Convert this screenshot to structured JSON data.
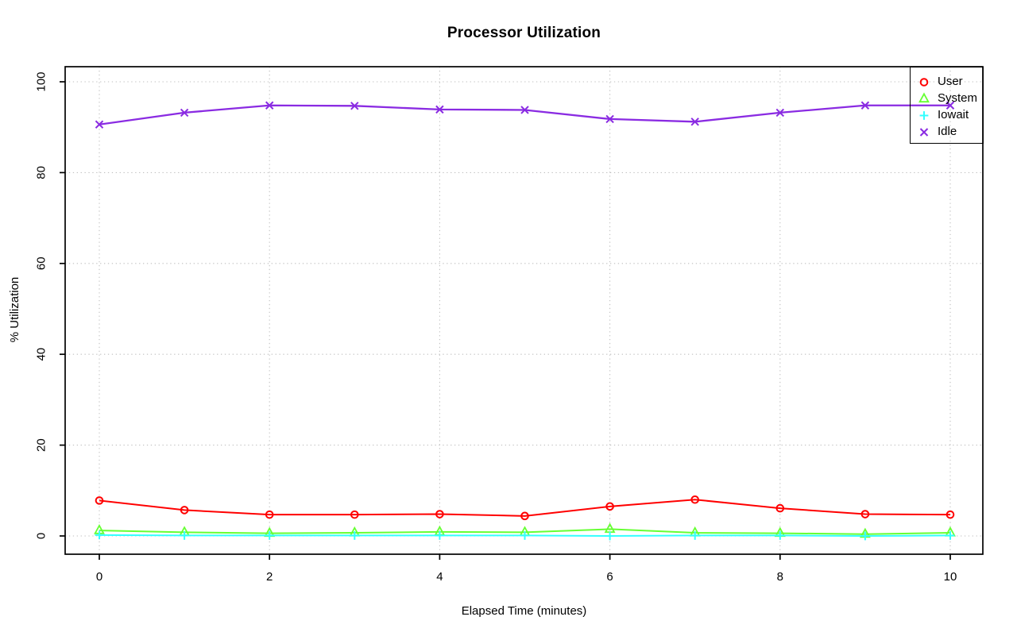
{
  "page": {
    "background_color": "#ffffff"
  },
  "chart_data": {
    "type": "line",
    "title": "Processor Utilization",
    "xlabel": "Elapsed Time (minutes)",
    "ylabel": "% Utilization",
    "xlim": [
      0,
      10
    ],
    "ylim": [
      0,
      100
    ],
    "x_ticks": [
      0,
      2,
      4,
      6,
      8,
      10
    ],
    "y_ticks": [
      0,
      20,
      40,
      60,
      80,
      100
    ],
    "grid": "dotted",
    "grid_color": "#bfbfbf",
    "axis_color": "#000000",
    "legend_position": "top-right",
    "legend_background": "transparent",
    "x": [
      0,
      1,
      2,
      3,
      4,
      5,
      6,
      7,
      8,
      9,
      10
    ],
    "series": [
      {
        "name": "User",
        "color": "#ff0000",
        "marker": "circle",
        "values": [
          7.8,
          5.7,
          4.7,
          4.7,
          4.8,
          4.4,
          6.5,
          8.0,
          6.1,
          4.8,
          4.7
        ]
      },
      {
        "name": "System",
        "color": "#66ff33",
        "marker": "triangle",
        "values": [
          1.2,
          0.8,
          0.6,
          0.7,
          0.9,
          0.8,
          1.5,
          0.7,
          0.6,
          0.4,
          0.7
        ]
      },
      {
        "name": "Iowait",
        "color": "#33ffff",
        "marker": "plus",
        "values": [
          0.2,
          0.1,
          0.1,
          0.1,
          0.1,
          0.1,
          0.0,
          0.1,
          0.1,
          0.0,
          0.1
        ]
      },
      {
        "name": "Idle",
        "color": "#8a2be2",
        "marker": "x",
        "values": [
          90.6,
          93.2,
          94.8,
          94.7,
          93.9,
          93.8,
          91.8,
          91.2,
          93.2,
          94.8,
          94.8
        ]
      }
    ]
  }
}
